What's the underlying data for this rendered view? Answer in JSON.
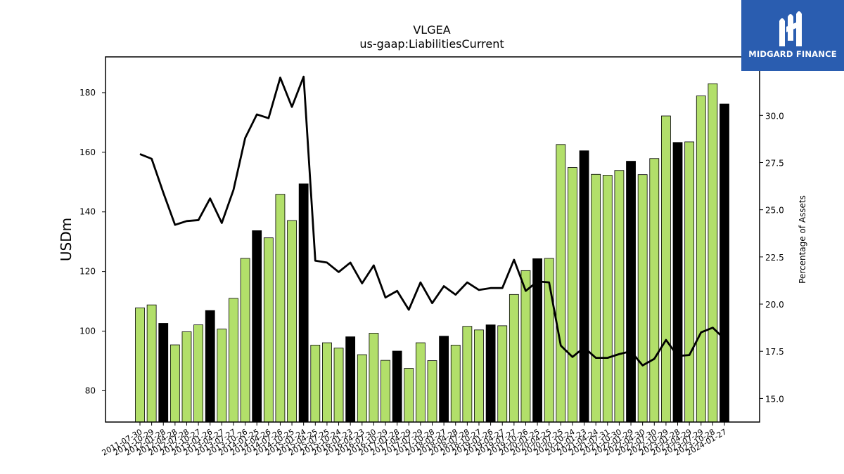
{
  "chart_data": {
    "type": "bar",
    "title": "VLGEA",
    "subtitle": "us-gaap:LiabilitiesCurrent",
    "ylabel": "USDm",
    "y2label": "Percentage of Assets",
    "ylim": [
      69.5,
      192
    ],
    "y2lim": [
      13.75,
      33.1
    ],
    "yticks": [
      80,
      100,
      120,
      140,
      160,
      180
    ],
    "y2ticks": [
      "15.0",
      "17.5",
      "20.0",
      "22.5",
      "25.0",
      "27.5",
      "30.0"
    ],
    "categories": [
      "2011-07-30",
      "2011-10-29",
      "2012-01-28",
      "2012-04-28",
      "2012-07-28",
      "2012-10-27",
      "2013-01-26",
      "2013-04-27",
      "2013-07-27",
      "2013-10-26",
      "2014-01-25",
      "2014-04-26",
      "2014-07-26",
      "2014-10-25",
      "2015-01-24",
      "2015-04-25",
      "2015-07-25",
      "2015-10-24",
      "2016-01-23",
      "2016-04-23",
      "2016-07-30",
      "2016-10-29",
      "2017-01-28",
      "2017-04-29",
      "2017-07-29",
      "2017-10-28",
      "2018-01-27",
      "2018-04-28",
      "2018-07-28",
      "2018-10-27",
      "2019-01-26",
      "2019-04-27",
      "2019-07-27",
      "2019-10-26",
      "2020-01-25",
      "2020-04-25",
      "2020-07-25",
      "2020-10-24",
      "2021-01-23",
      "2021-04-24",
      "2021-07-31",
      "2021-10-30",
      "2022-01-29",
      "2022-04-30",
      "2022-07-30",
      "2022-10-29",
      "2023-01-28",
      "2023-04-29",
      "2023-07-29",
      "2023-10-28",
      "2024-01-27"
    ],
    "series": [
      {
        "type": "bar",
        "values": [
          107.8,
          108.8,
          102.6,
          95.4,
          99.8,
          102.1,
          106.9,
          100.7,
          111.0,
          124.4,
          133.7,
          131.3,
          145.9,
          137.1,
          149.4,
          95.3,
          96.1,
          94.3,
          98.1,
          92.1,
          99.3,
          90.2,
          93.3,
          87.5,
          96.1,
          90.1,
          98.3,
          95.3,
          101.6,
          100.4,
          102.1,
          101.8,
          112.3,
          120.3,
          124.3,
          124.4,
          162.6,
          154.9,
          160.5,
          152.6,
          152.3,
          153.9,
          157.0,
          152.5,
          157.9,
          172.2,
          163.3,
          163.5,
          178.9,
          183.0,
          176.2
        ],
        "highlight": [
          false,
          false,
          true,
          false,
          false,
          false,
          true,
          false,
          false,
          false,
          true,
          false,
          false,
          false,
          true,
          false,
          false,
          false,
          true,
          false,
          false,
          false,
          true,
          false,
          false,
          false,
          true,
          false,
          false,
          false,
          true,
          false,
          false,
          false,
          true,
          false,
          false,
          false,
          true,
          false,
          false,
          false,
          true,
          false,
          false,
          false,
          true,
          false,
          false,
          false,
          true
        ]
      },
      {
        "type": "line",
        "axis": "right",
        "values": [
          27.95,
          27.7,
          25.9,
          24.2,
          24.4,
          24.45,
          25.6,
          24.3,
          26.05,
          28.8,
          30.05,
          29.85,
          32.0,
          30.45,
          32.05,
          22.3,
          22.2,
          21.7,
          22.2,
          21.1,
          22.05,
          20.35,
          20.7,
          19.7,
          21.15,
          20.05,
          20.95,
          20.5,
          21.15,
          20.75,
          20.85,
          20.85,
          22.35,
          20.7,
          21.2,
          21.15,
          17.8,
          17.2,
          17.7,
          17.15,
          17.15,
          17.35,
          17.5,
          16.75,
          17.1,
          18.1,
          17.25,
          17.3,
          18.5,
          18.75,
          18.15
        ]
      }
    ],
    "colors": {
      "bar": "#b2df6a",
      "bar_highlight": "#000000",
      "bar_edge": "#000000",
      "line": "#000000"
    }
  },
  "logo": {
    "text": "MIDGARD FINANCE",
    "color": "#2a5db0"
  }
}
